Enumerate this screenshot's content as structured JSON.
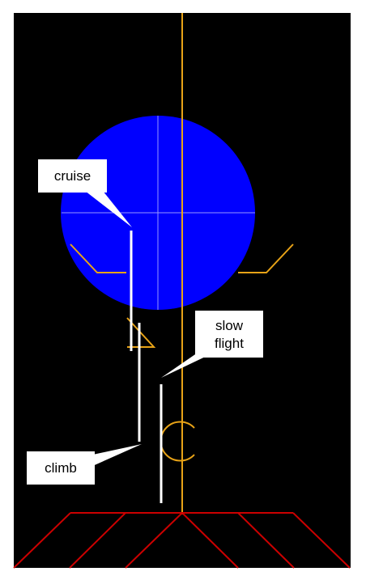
{
  "colors": {
    "background": "#000000",
    "globe": "#0000ff",
    "globe_crosshair": "#9999ff",
    "lines": "#e8a317",
    "markers": "#ffffff",
    "ground_grid": "#cc0000",
    "callout_box": "#ffffff",
    "callout_text": "#000000"
  },
  "callouts": {
    "cruise": {
      "label": "cruise"
    },
    "slow_flight": {
      "line1": "slow",
      "line2": "flight"
    },
    "climb": {
      "label": "climb"
    }
  }
}
